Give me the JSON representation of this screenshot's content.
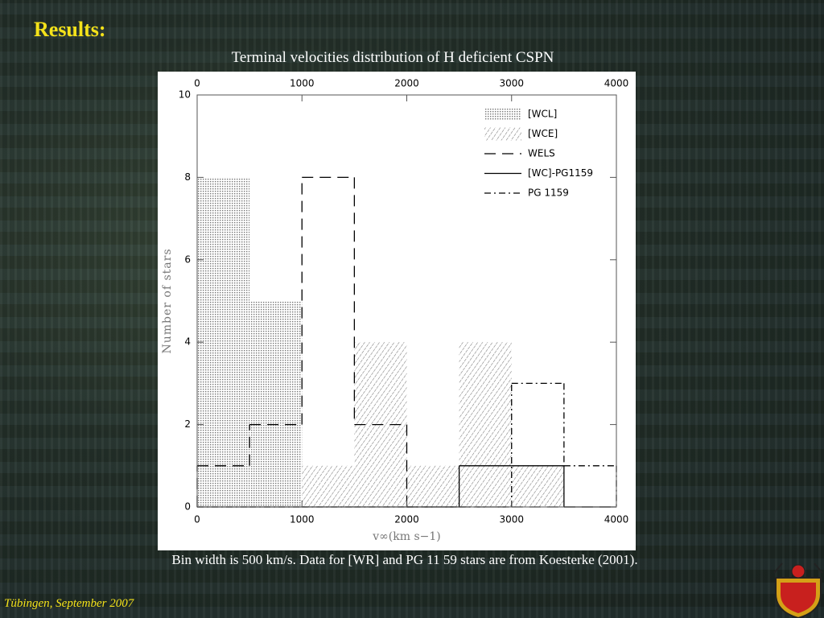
{
  "title": "Results:",
  "caption": "Bin width is 500 km/s. Data for [WR] and PG 11 59 stars are from Koesterke (2001).",
  "footer": "Tübingen, September 2007",
  "chart_data": {
    "type": "histogram",
    "title": "Terminal velocities distribution of H deficient CSPN",
    "xlabel": "v∞(km s−1)",
    "ylabel": "Number of stars",
    "bins": [
      0,
      500,
      1000,
      1500,
      2000,
      2500,
      3000,
      3500,
      4000
    ],
    "series": [
      {
        "name": "[WCL]",
        "style": "dots",
        "values": [
          8,
          5,
          0,
          0,
          0,
          0,
          0,
          0
        ]
      },
      {
        "name": "[WCE]",
        "style": "hatch",
        "values": [
          0,
          0,
          1,
          4,
          1,
          4,
          1,
          0
        ]
      },
      {
        "name": "WELS",
        "style": "dashed",
        "values": [
          1,
          2,
          8,
          2,
          0,
          0,
          0,
          0
        ]
      },
      {
        "name": "[WC]-PG1159",
        "style": "solid",
        "values": [
          0,
          0,
          0,
          0,
          0,
          1,
          1,
          0
        ]
      },
      {
        "name": "PG 1159",
        "style": "dashdot",
        "values": [
          0,
          0,
          0,
          0,
          0,
          0,
          3,
          1
        ]
      }
    ],
    "xlim": [
      0,
      4000
    ],
    "ylim": [
      0,
      10
    ],
    "xticks": [
      0,
      1000,
      2000,
      3000,
      4000
    ],
    "yticks": [
      0,
      2,
      4,
      6,
      8,
      10
    ],
    "legend": "upper right"
  }
}
